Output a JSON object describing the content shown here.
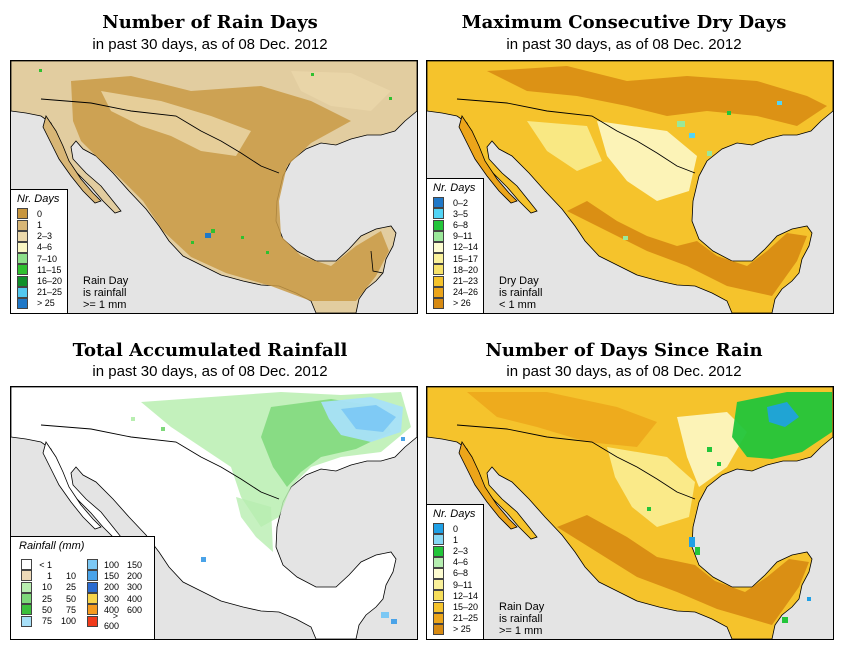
{
  "panels": {
    "rain_days": {
      "title": "Number of Rain Days",
      "subtitle": "in past 30 days, as of  08 Dec. 2012",
      "legend_title": "Nr. Days",
      "legend": [
        {
          "label": "0",
          "color": "#c8963e"
        },
        {
          "label": "1",
          "color": "#d8b676"
        },
        {
          "label": "2–3",
          "color": "#ecd9ab"
        },
        {
          "label": "4–6",
          "color": "#fbf7c4"
        },
        {
          "label": "7–10",
          "color": "#8ee08a"
        },
        {
          "label": "11–15",
          "color": "#2fc02f"
        },
        {
          "label": "16–20",
          "color": "#0f8f2a"
        },
        {
          "label": "21–25",
          "color": "#52c8f0"
        },
        {
          "label": "> 25",
          "color": "#1f78c8"
        }
      ],
      "note": [
        "Rain Day",
        "is rainfall",
        ">= 1 mm"
      ]
    },
    "dry_days": {
      "title": "Maximum Consecutive Dry Days",
      "subtitle": "in past 30 days, as of  08 Dec. 2012",
      "legend_title": "Nr. Days",
      "legend": [
        {
          "label": "0–2",
          "color": "#1f78c8"
        },
        {
          "label": "3–5",
          "color": "#52d4f5"
        },
        {
          "label": "6–8",
          "color": "#22c53a"
        },
        {
          "label": "9–11",
          "color": "#9be89a"
        },
        {
          "label": "12–14",
          "color": "#fdfcd0"
        },
        {
          "label": "15–17",
          "color": "#faf19a"
        },
        {
          "label": "18–20",
          "color": "#f7e26a"
        },
        {
          "label": "21–23",
          "color": "#f5c32c"
        },
        {
          "label": "24–26",
          "color": "#eca51a"
        },
        {
          "label": "> 26",
          "color": "#d78a12"
        }
      ],
      "note": [
        "Dry Day",
        "is rainfall",
        "< 1 mm"
      ]
    },
    "total_rain": {
      "title": "Total Accumulated Rainfall",
      "subtitle": "in past 30 days, as of  08 Dec. 2012",
      "legend_title": "Rainfall (mm)",
      "legend": [
        {
          "lo": "< 1",
          "hi": "",
          "color": "#ffffff"
        },
        {
          "lo": "1",
          "hi": "10",
          "color": "#ecd9b8"
        },
        {
          "lo": "10",
          "hi": "25",
          "color": "#b8eeb0"
        },
        {
          "lo": "25",
          "hi": "50",
          "color": "#7ed87a"
        },
        {
          "lo": "50",
          "hi": "75",
          "color": "#3cbf3c"
        },
        {
          "lo": "75",
          "hi": "100",
          "color": "#a8e0f8"
        },
        {
          "lo": "100",
          "hi": "150",
          "color": "#7cc8f4"
        },
        {
          "lo": "150",
          "hi": "200",
          "color": "#4aa3e8"
        },
        {
          "lo": "200",
          "hi": "300",
          "color": "#2a6bd0"
        },
        {
          "lo": "300",
          "hi": "400",
          "color": "#f7d44a"
        },
        {
          "lo": "400",
          "hi": "600",
          "color": "#f59a1e"
        },
        {
          "lo": "> 600",
          "hi": "",
          "color": "#f03a1a"
        }
      ]
    },
    "since_rain": {
      "title": "Number of Days Since Rain",
      "subtitle": "in past 30 days, as of  08 Dec. 2012",
      "legend_title": "Nr. Days",
      "legend": [
        {
          "label": "0",
          "color": "#1fa0e6"
        },
        {
          "label": "1",
          "color": "#86d8f5"
        },
        {
          "label": "2–3",
          "color": "#22c53a"
        },
        {
          "label": "4–6",
          "color": "#b5eeb0"
        },
        {
          "label": "6–8",
          "color": "#fdfcd0"
        },
        {
          "label": "9–11",
          "color": "#faf19a"
        },
        {
          "label": "12–14",
          "color": "#f7de5a"
        },
        {
          "label": "15–20",
          "color": "#f5c32c"
        },
        {
          "label": "21–25",
          "color": "#eca51a"
        },
        {
          "label": "> 25",
          "color": "#d78a12"
        }
      ],
      "note": [
        "Rain Day",
        "is rainfall",
        ">= 1 mm"
      ]
    }
  }
}
